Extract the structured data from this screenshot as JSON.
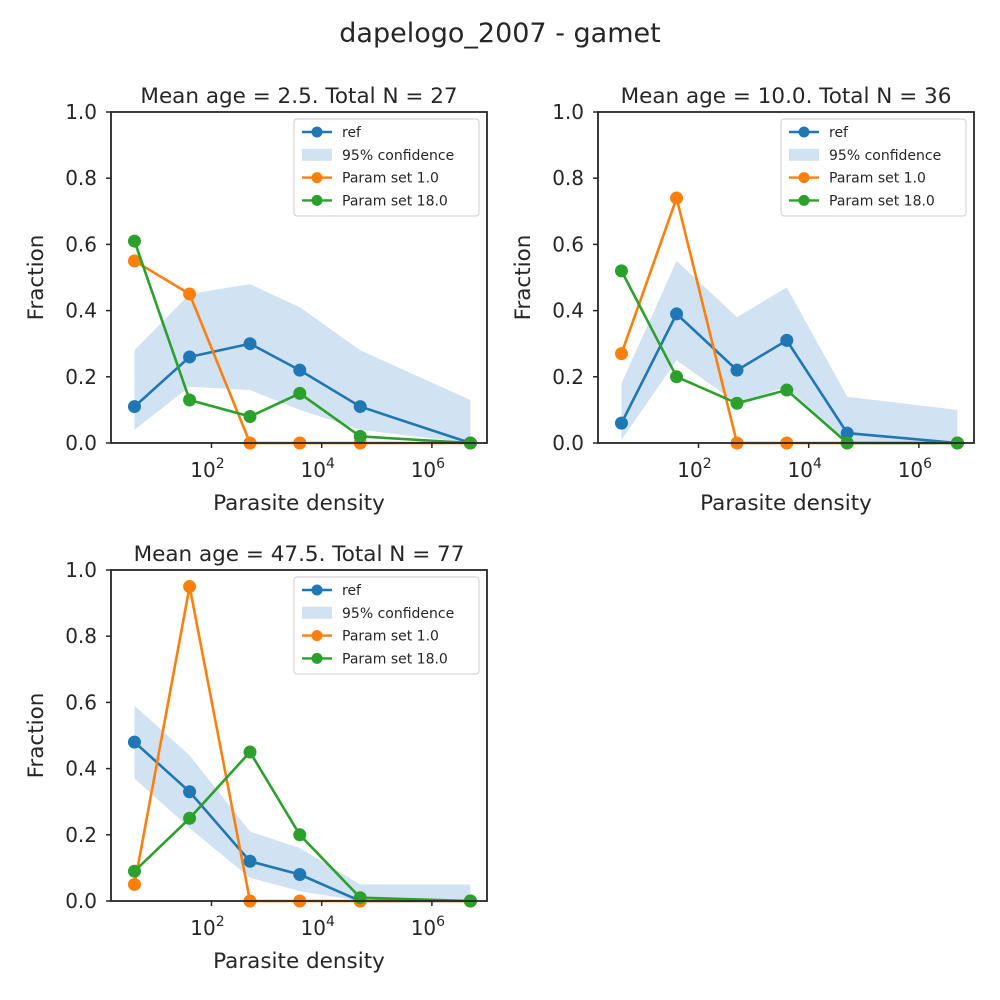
{
  "figure": {
    "suptitle": "dapelogo_2007 - gamet"
  },
  "legend_labels": [
    "ref",
    "95% confidence",
    "Param set 1.0",
    "Param set 18.0"
  ],
  "colors": {
    "ref": "#1f77b4",
    "ci": "#c6dbef",
    "p1": "#ff7f0e",
    "p18": "#2ca02c",
    "axis": "#262626",
    "text": "#262626"
  },
  "chart_data": [
    {
      "type": "line",
      "title": "Mean age = 2.5.  Total N = 27",
      "xlabel": "Parasite density",
      "ylabel": "Fraction",
      "xscale": "log",
      "xlim": [
        1.5,
        10000000
      ],
      "ylim": [
        0,
        1
      ],
      "yticks": [
        "0.0",
        "0.2",
        "0.4",
        "0.6",
        "0.8",
        "1.0"
      ],
      "xticks": [
        {
          "base": "10",
          "exp": "2",
          "value": 100
        },
        {
          "base": "10",
          "exp": "4",
          "value": 10000
        },
        {
          "base": "10",
          "exp": "6",
          "value": 1000000
        }
      ],
      "legend_position": "upper right",
      "x": [
        4,
        40,
        500,
        4000,
        50000,
        5000000
      ],
      "ci_lower": [
        0.04,
        0.17,
        0.16,
        0.1,
        0.04,
        0.0
      ],
      "ci_upper": [
        0.28,
        0.45,
        0.48,
        0.41,
        0.28,
        0.13
      ],
      "series": [
        {
          "name": "ref",
          "color_key": "ref",
          "values": [
            0.11,
            0.26,
            0.3,
            0.22,
            0.11,
            0.0
          ]
        },
        {
          "name": "Param set 1.0",
          "color_key": "p1",
          "values": [
            0.55,
            0.45,
            0.0,
            0.0,
            0.0,
            0.0
          ]
        },
        {
          "name": "Param set 18.0",
          "color_key": "p18",
          "values": [
            0.61,
            0.13,
            0.08,
            0.15,
            0.02,
            0.0
          ]
        }
      ]
    },
    {
      "type": "line",
      "title": "Mean age = 10.0.  Total N = 36",
      "xlabel": "Parasite density",
      "ylabel": "Fraction",
      "xscale": "log",
      "xlim": [
        1.5,
        10000000
      ],
      "ylim": [
        0,
        1
      ],
      "yticks": [
        "0.0",
        "0.2",
        "0.4",
        "0.6",
        "0.8",
        "1.0"
      ],
      "xticks": [
        {
          "base": "10",
          "exp": "2",
          "value": 100
        },
        {
          "base": "10",
          "exp": "4",
          "value": 10000
        },
        {
          "base": "10",
          "exp": "6",
          "value": 1000000
        }
      ],
      "legend_position": "upper right",
      "x": [
        4,
        40,
        500,
        4000,
        50000,
        5000000
      ],
      "ci_lower": [
        0.01,
        0.25,
        0.12,
        0.17,
        0.0,
        0.0
      ],
      "ci_upper": [
        0.18,
        0.55,
        0.38,
        0.47,
        0.14,
        0.1
      ],
      "series": [
        {
          "name": "ref",
          "color_key": "ref",
          "values": [
            0.06,
            0.39,
            0.22,
            0.31,
            0.03,
            0.0
          ]
        },
        {
          "name": "Param set 1.0",
          "color_key": "p1",
          "values": [
            0.27,
            0.74,
            0.0,
            0.0,
            0.0,
            0.0
          ]
        },
        {
          "name": "Param set 18.0",
          "color_key": "p18",
          "values": [
            0.52,
            0.2,
            0.12,
            0.16,
            0.0,
            0.0
          ]
        }
      ]
    },
    {
      "type": "line",
      "title": "Mean age = 47.5.  Total N = 77",
      "xlabel": "Parasite density",
      "ylabel": "Fraction",
      "xscale": "log",
      "xlim": [
        1.5,
        10000000
      ],
      "ylim": [
        0,
        1
      ],
      "yticks": [
        "0.0",
        "0.2",
        "0.4",
        "0.6",
        "0.8",
        "1.0"
      ],
      "xticks": [
        {
          "base": "10",
          "exp": "2",
          "value": 100
        },
        {
          "base": "10",
          "exp": "4",
          "value": 10000
        },
        {
          "base": "10",
          "exp": "6",
          "value": 1000000
        }
      ],
      "legend_position": "upper right",
      "x": [
        4,
        40,
        500,
        4000,
        50000,
        5000000
      ],
      "ci_lower": [
        0.37,
        0.22,
        0.07,
        0.03,
        0.0,
        0.0
      ],
      "ci_upper": [
        0.59,
        0.44,
        0.21,
        0.16,
        0.05,
        0.05
      ],
      "series": [
        {
          "name": "ref",
          "color_key": "ref",
          "values": [
            0.48,
            0.33,
            0.12,
            0.08,
            0.0,
            0.0
          ]
        },
        {
          "name": "Param set 1.0",
          "color_key": "p1",
          "values": [
            0.05,
            0.95,
            0.0,
            0.0,
            0.0,
            0.0
          ]
        },
        {
          "name": "Param set 18.0",
          "color_key": "p18",
          "values": [
            0.09,
            0.25,
            0.45,
            0.2,
            0.01,
            0.0
          ]
        }
      ]
    }
  ]
}
